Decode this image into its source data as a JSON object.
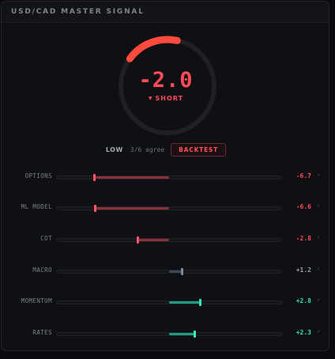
{
  "header": {
    "title": "USD/CAD MASTER SIGNAL"
  },
  "gauge": {
    "score_text": "-2.0",
    "score_value": -2.0,
    "direction_arrow": "▼",
    "direction": "SHORT",
    "arc_color": "#ff4a3d",
    "track_color": "#1e2024"
  },
  "meta": {
    "confidence": "LOW",
    "agree": "3/6 agree",
    "backtest_label": "BACKTEST"
  },
  "colors": {
    "negative": "#ff4a5a",
    "negative_fill": "#8f2f3a",
    "negative_thumb": "#ff5566",
    "positive": "#2ee6b0",
    "positive_fill": "#1f9d80",
    "positive_thumb": "#34f0c0",
    "neutral": "#9aa0aa",
    "neutral_fill": "#3f4754",
    "neutral_thumb": "#7f8a99"
  },
  "factors": [
    {
      "label": "OPTIONS",
      "value": -6.7,
      "value_text": "-6.7",
      "tone": "negative",
      "icon": "chevron-right-icon"
    },
    {
      "label": "ML MODEL",
      "value": -6.6,
      "value_text": "-6.6",
      "tone": "negative",
      "icon": "chevron-right-icon"
    },
    {
      "label": "COT",
      "value": -2.8,
      "value_text": "-2.8",
      "tone": "negative",
      "icon": "chevron-right-icon"
    },
    {
      "label": "MACRO",
      "value": 1.2,
      "value_text": "+1.2",
      "tone": "neutral",
      "icon": "chevron-right-icon"
    },
    {
      "label": "MOMENTUM",
      "value": 2.8,
      "value_text": "+2.8",
      "tone": "positive",
      "icon": "chevron-right-icon"
    },
    {
      "label": "RATES",
      "value": 2.3,
      "value_text": "+2.3",
      "tone": "positive",
      "icon": "chevron-right-icon"
    }
  ]
}
